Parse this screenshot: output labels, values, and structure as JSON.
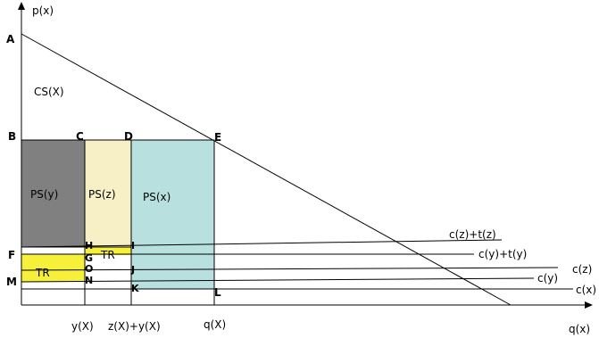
{
  "axes": {
    "y_label": "p(x)",
    "x_label": "q(x)"
  },
  "points": {
    "A": "A",
    "B": "B",
    "C": "C",
    "D": "D",
    "E": "E",
    "F": "F",
    "G": "G",
    "H": "H",
    "I": "I",
    "J": "J",
    "K": "K",
    "L": "L",
    "M": "M",
    "N": "N",
    "O": "O"
  },
  "areas": {
    "cs": "CS(X)",
    "ps_y": "PS(y)",
    "ps_z": "PS(z)",
    "ps_x": "PS(x)",
    "tr_left": "TR",
    "tr_right": "TR"
  },
  "curves": {
    "czt": "c(z)+t(z)",
    "cyt": "c(y)+t(y)",
    "cz": "c(z)",
    "cy": "c(y)",
    "cx": "c(x)"
  },
  "x_ticks": {
    "y": "y(X)",
    "zy": "z(X)+y(X)",
    "q": "q(X)"
  },
  "colors": {
    "ps_y": "#808080",
    "ps_z": "#f7efc6",
    "ps_x": "#b7e0df",
    "tr": "#f7f03a"
  }
}
